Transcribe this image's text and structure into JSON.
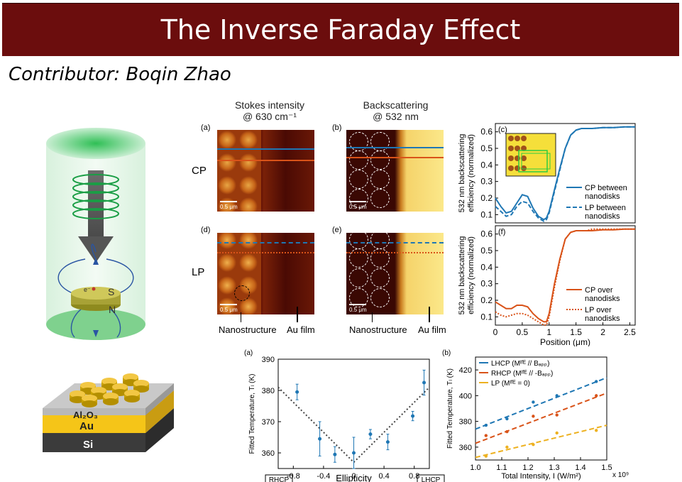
{
  "title": "The Inverse Faraday Effect",
  "contributor": "Contributor: Boqin Zhao",
  "illustration": {
    "spin_label": "S",
    "north_label": "N",
    "electron_label": "e⁻"
  },
  "substrate": {
    "layers": [
      "Al₂O₃",
      "Au",
      "Si"
    ]
  },
  "top_figure": {
    "col_headers": [
      {
        "line1": "Stokes intensity",
        "line2": "@ 630 cm⁻¹"
      },
      {
        "line1": "Backscattering",
        "line2": "@ 532 nm"
      }
    ],
    "row_labels": [
      "CP",
      "LP"
    ],
    "panel_labels": [
      "(a)",
      "(b)",
      "(c)",
      "(d)",
      "(e)",
      "(f)"
    ],
    "scale_bar": "0.5 μm",
    "bottom_labels": [
      "Nanostructure",
      "Au film",
      "Nanostructure",
      "Au film"
    ]
  },
  "chart_data": [
    {
      "type": "line",
      "panel": "(c)",
      "ylabel": "532 nm backscattering efficiency (normalized)",
      "ylim": [
        0.05,
        0.65
      ],
      "yticks": [
        0.1,
        0.2,
        0.3,
        0.4,
        0.5,
        0.6
      ],
      "xlim": [
        0,
        2.6
      ],
      "series": [
        {
          "name": "CP between nanodisks",
          "style": "solid",
          "color": "#1f77b4",
          "x": [
            0,
            0.1,
            0.2,
            0.3,
            0.4,
            0.5,
            0.6,
            0.7,
            0.8,
            0.9,
            0.95,
            1.0,
            1.1,
            1.2,
            1.3,
            1.4,
            1.5,
            1.6,
            1.7,
            1.8,
            2.0,
            2.2,
            2.4,
            2.6
          ],
          "y": [
            0.2,
            0.15,
            0.11,
            0.12,
            0.17,
            0.22,
            0.21,
            0.14,
            0.09,
            0.07,
            0.08,
            0.12,
            0.25,
            0.38,
            0.5,
            0.58,
            0.61,
            0.62,
            0.62,
            0.62,
            0.625,
            0.625,
            0.63,
            0.63
          ]
        },
        {
          "name": "LP between nanodisks",
          "style": "dashed",
          "color": "#1f77b4",
          "x": [
            0,
            0.1,
            0.2,
            0.3,
            0.4,
            0.5,
            0.6,
            0.7,
            0.8,
            0.9,
            0.95,
            1.0,
            1.1,
            1.2,
            1.3,
            1.4,
            1.5,
            1.6,
            1.7,
            1.8,
            2.0,
            2.2,
            2.4,
            2.6
          ],
          "y": [
            0.15,
            0.12,
            0.09,
            0.1,
            0.15,
            0.18,
            0.17,
            0.12,
            0.08,
            0.06,
            0.07,
            0.11,
            0.24,
            0.37,
            0.5,
            0.58,
            0.61,
            0.62,
            0.62,
            0.62,
            0.625,
            0.625,
            0.63,
            0.63
          ]
        }
      ]
    },
    {
      "type": "line",
      "panel": "(f)",
      "ylabel": "532 nm backscattering efficiency (normalized)",
      "xlabel": "Position (μm)",
      "ylim": [
        0.05,
        0.65
      ],
      "yticks": [
        0.1,
        0.2,
        0.3,
        0.4,
        0.5,
        0.6
      ],
      "xlim": [
        0,
        2.6
      ],
      "xticks": [
        0,
        0.5,
        1,
        1.5,
        2,
        2.5
      ],
      "series": [
        {
          "name": "CP over nanodisks",
          "style": "solid",
          "color": "#d95319",
          "x": [
            0,
            0.1,
            0.2,
            0.3,
            0.4,
            0.5,
            0.6,
            0.7,
            0.8,
            0.9,
            0.95,
            1.0,
            1.1,
            1.2,
            1.3,
            1.4,
            1.5,
            1.6,
            1.7,
            1.8,
            2.0,
            2.2,
            2.4,
            2.6
          ],
          "y": [
            0.19,
            0.17,
            0.15,
            0.15,
            0.17,
            0.17,
            0.16,
            0.12,
            0.09,
            0.07,
            0.07,
            0.12,
            0.3,
            0.45,
            0.57,
            0.61,
            0.62,
            0.62,
            0.62,
            0.62,
            0.625,
            0.625,
            0.63,
            0.63
          ]
        },
        {
          "name": "LP over nanodisks",
          "style": "dotted",
          "color": "#d95319",
          "x": [
            0,
            0.1,
            0.2,
            0.3,
            0.4,
            0.5,
            0.6,
            0.7,
            0.8,
            0.9,
            0.95,
            1.0,
            1.1,
            1.2,
            1.3,
            1.4,
            1.5,
            1.6,
            1.7,
            1.8,
            2.0,
            2.2,
            2.4,
            2.6
          ],
          "y": [
            0.13,
            0.11,
            0.1,
            0.11,
            0.12,
            0.12,
            0.11,
            0.09,
            0.07,
            0.05,
            0.05,
            0.1,
            0.28,
            0.44,
            0.57,
            0.61,
            0.62,
            0.62,
            0.62,
            0.63,
            0.63,
            0.63,
            0.63,
            0.63
          ]
        }
      ]
    },
    {
      "type": "scatter",
      "panel": "(a)",
      "xlabel": "Ellipticity",
      "ylabel": "Fitted Temperature, Tₗ (K)",
      "xlim": [
        -1,
        1
      ],
      "ylim": [
        355,
        390
      ],
      "xticks": [
        -0.8,
        -0.4,
        0,
        0.4,
        0.8
      ],
      "yticks": [
        360,
        370,
        380,
        390
      ],
      "corner_labels": [
        "RHCP",
        "LHCP"
      ],
      "points": [
        {
          "x": -0.75,
          "y": 379.5,
          "err": 2.5
        },
        {
          "x": -0.45,
          "y": 364.5,
          "err": 5.5
        },
        {
          "x": -0.25,
          "y": 359.5,
          "err": 2.5
        },
        {
          "x": 0.0,
          "y": 360.0,
          "err": 5.0
        },
        {
          "x": 0.22,
          "y": 366.0,
          "err": 1.5
        },
        {
          "x": 0.45,
          "y": 363.5,
          "err": 2.5
        },
        {
          "x": 0.78,
          "y": 371.8,
          "err": 1.5
        },
        {
          "x": 0.93,
          "y": 382.5,
          "err": 4.0
        }
      ],
      "fit": [
        {
          "x": -1,
          "y": 381
        },
        {
          "x": 0,
          "y": 357
        },
        {
          "x": 1,
          "y": 381
        }
      ]
    },
    {
      "type": "scatter",
      "panel": "(b)",
      "xlabel": "Total Intensity, I (W/m²)",
      "ylabel": "Fitted Temperature, Tₗ (K)",
      "x_multiplier": "x 10⁹",
      "xlim": [
        1.0,
        1.5
      ],
      "ylim": [
        350,
        430
      ],
      "xticks": [
        1.0,
        1.1,
        1.2,
        1.3,
        1.4,
        1.5
      ],
      "yticks": [
        360,
        380,
        400,
        420
      ],
      "series": [
        {
          "name": "LHCP (Mᴵᶠᴱ // Bₐₚₚ)",
          "color": "#1f77b4",
          "x": [
            1.04,
            1.12,
            1.22,
            1.31,
            1.46
          ],
          "y": [
            377,
            382,
            395,
            400,
            411
          ],
          "fit": [
            [
              1.0,
              374
            ],
            [
              1.5,
              414
            ]
          ]
        },
        {
          "name": "RHCP (Mᴵᶠᴱ // -Bₐₚₚ)",
          "color": "#d95319",
          "x": [
            1.04,
            1.12,
            1.22,
            1.31,
            1.46
          ],
          "y": [
            369,
            372,
            384,
            385,
            400
          ],
          "fit": [
            [
              1.0,
              363
            ],
            [
              1.5,
              402
            ]
          ]
        },
        {
          "name": "LP (Mᴵᶠᴱ = 0)",
          "color": "#edb120",
          "x": [
            1.04,
            1.12,
            1.22,
            1.31,
            1.46
          ],
          "y": [
            353,
            360,
            362,
            371,
            373
          ],
          "fit": [
            [
              1.0,
              352
            ],
            [
              1.5,
              377
            ]
          ]
        }
      ]
    }
  ]
}
